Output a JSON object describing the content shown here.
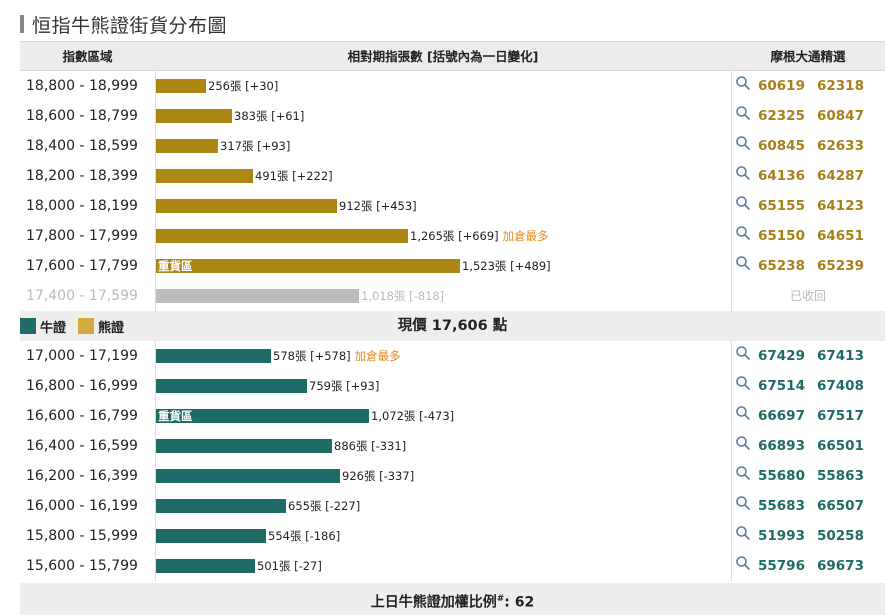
{
  "title": "恒指牛熊證街貨分布圖",
  "header": {
    "col_range": "指數區域",
    "col_outstanding": "相對期指張數 [括號內為一日變化]",
    "col_picks": "摩根大通精選"
  },
  "bear_rows": [
    {
      "range": "18,800 - 18,999",
      "count": "256張 [+30]",
      "value": 256,
      "note": "",
      "heavy": "",
      "picks": [
        "60619",
        "62318"
      ]
    },
    {
      "range": "18,600 - 18,799",
      "count": "383張 [+61]",
      "value": 383,
      "note": "",
      "heavy": "",
      "picks": [
        "62325",
        "60847"
      ]
    },
    {
      "range": "18,400 - 18,599",
      "count": "317張 [+93]",
      "value": 317,
      "note": "",
      "heavy": "",
      "picks": [
        "60845",
        "62633"
      ]
    },
    {
      "range": "18,200 - 18,399",
      "count": "491張 [+222]",
      "value": 491,
      "note": "",
      "heavy": "",
      "picks": [
        "64136",
        "64287"
      ]
    },
    {
      "range": "18,000 - 18,199",
      "count": "912張 [+453]",
      "value": 912,
      "note": "",
      "heavy": "",
      "picks": [
        "65155",
        "64123"
      ]
    },
    {
      "range": "17,800 - 17,999",
      "count": "1,265張 [+669]",
      "value": 1265,
      "note": "加倉最多",
      "heavy": "",
      "picks": [
        "65150",
        "64651"
      ]
    },
    {
      "range": "17,600 - 17,799",
      "count": "1,523張 [+489]",
      "value": 1523,
      "note": "",
      "heavy": "重貨區",
      "picks": [
        "65238",
        "65239"
      ]
    }
  ],
  "recalled_row": {
    "range": "17,400 - 17,599",
    "count": "1,018張 [-818]",
    "value": 1018,
    "status": "已收回"
  },
  "legend": {
    "bull": "牛證",
    "bear": "熊證"
  },
  "current_price": "現價 17,606 點",
  "bull_rows": [
    {
      "range": "17,000 - 17,199",
      "count": "578張 [+578]",
      "value": 578,
      "note": "加倉最多",
      "heavy": "",
      "picks": [
        "67429",
        "67413"
      ]
    },
    {
      "range": "16,800 - 16,999",
      "count": "759張 [+93]",
      "value": 759,
      "note": "",
      "heavy": "",
      "picks": [
        "67514",
        "67408"
      ]
    },
    {
      "range": "16,600 - 16,799",
      "count": "1,072張 [-473]",
      "value": 1072,
      "note": "",
      "heavy": "重貨區",
      "picks": [
        "66697",
        "67517"
      ]
    },
    {
      "range": "16,400 - 16,599",
      "count": "886張 [-331]",
      "value": 886,
      "note": "",
      "heavy": "",
      "picks": [
        "66893",
        "66501"
      ]
    },
    {
      "range": "16,200 - 16,399",
      "count": "926張 [-337]",
      "value": 926,
      "note": "",
      "heavy": "",
      "picks": [
        "55680",
        "55863"
      ]
    },
    {
      "range": "16,000 - 16,199",
      "count": "655張 [-227]",
      "value": 655,
      "note": "",
      "heavy": "",
      "picks": [
        "55683",
        "66507"
      ]
    },
    {
      "range": "15,800 - 15,999",
      "count": "554張 [-186]",
      "value": 554,
      "note": "",
      "heavy": "",
      "picks": [
        "51993",
        "50258"
      ]
    },
    {
      "range": "15,600 - 15,799",
      "count": "501張 [-27]",
      "value": 501,
      "note": "",
      "heavy": "",
      "picks": [
        "55796",
        "69673"
      ]
    }
  ],
  "footer": {
    "label": "上日牛熊證加權比例",
    "marker": "#",
    "value": ": 62"
  },
  "colors": {
    "bull": "#1f6b65",
    "bear": "#ad8714",
    "recalled": "#bdbdbd",
    "note": "#e08a1e"
  },
  "icons": {
    "pick_search": "magnifier-icon"
  }
}
